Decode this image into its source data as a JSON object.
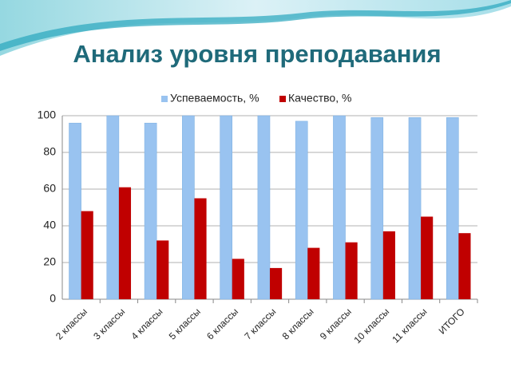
{
  "chart_data": {
    "type": "bar",
    "title": "Анализ уровня преподавания",
    "categories": [
      "2 классы",
      "3 классы",
      "4 классы",
      "5 классы",
      "6 классы",
      "7 классы",
      "8 классы",
      "9 классы",
      "10 классы",
      "11 классы",
      "ИТОГО"
    ],
    "series": [
      {
        "name": "Успеваемость, %",
        "color": "#99c3f0",
        "values": [
          96,
          100,
          96,
          100,
          100,
          100,
          97,
          100,
          99,
          99,
          99
        ]
      },
      {
        "name": "Качество, %",
        "color": "#c00000",
        "values": [
          48,
          61,
          32,
          55,
          22,
          17,
          28,
          31,
          37,
          45,
          36
        ]
      }
    ],
    "ylim": [
      0,
      100
    ],
    "yticks": [
      0,
      20,
      40,
      60,
      80,
      100
    ],
    "grid": true,
    "legend": "top"
  }
}
